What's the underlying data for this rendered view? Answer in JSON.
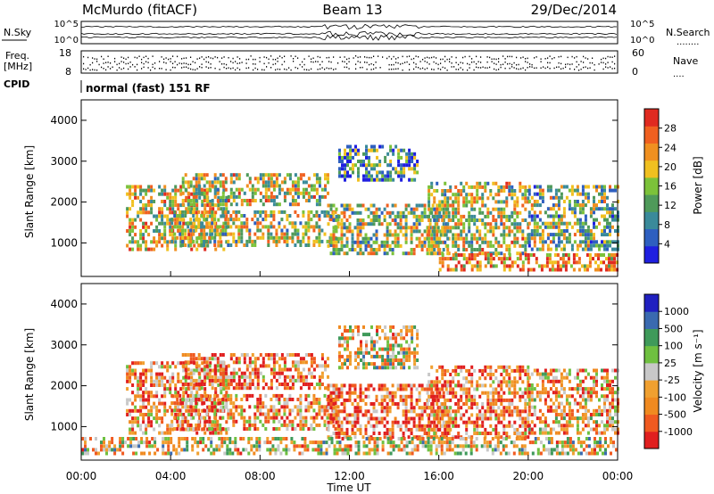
{
  "header": {
    "title": "McMurdo (fitACF)",
    "beam": "Beam 13",
    "date": "29/Dec/2014"
  },
  "params_panel": {
    "nsky_label": "N.Sky",
    "nsky_ticks": [
      "10^5",
      "10^0"
    ],
    "nsearch_label": "N.Search",
    "nsearch_ticks": [
      "10^5",
      "10^0"
    ],
    "freq_label_line1": "Freq.",
    "freq_label_line2": "[MHz]",
    "freq_ticks": [
      "18",
      "8"
    ],
    "nave_label": "Nave",
    "nave_ticks": [
      "60",
      "0"
    ],
    "cpid_label": "CPID",
    "cpid_text": "normal (fast) 151 RF",
    "nsearch_dots": "........",
    "nave_dots": "...."
  },
  "chart_data": [
    {
      "type": "heatmap",
      "name": "power",
      "ylabel": "Slant Range [km]",
      "yticks": [
        "4000",
        "3000",
        "2000",
        "1000"
      ],
      "ytick_values": [
        4000,
        3000,
        2000,
        1000
      ],
      "ylim": [
        180,
        4500
      ],
      "x_range_hours": [
        0,
        24
      ],
      "colorbar": {
        "label": "Power [dB]",
        "ticks": [
          "28",
          "24",
          "20",
          "16",
          "12",
          "8",
          "4"
        ],
        "colors_bottom_to_top": [
          "#1f1fe0",
          "#2e5fc0",
          "#3a8a9a",
          "#4f9a5a",
          "#7cc23a",
          "#f0c020",
          "#f09020",
          "#f06020",
          "#e02a20"
        ]
      },
      "echo_regions": [
        {
          "t": [
            2.0,
            6.5
          ],
          "r": [
            800,
            2400
          ],
          "level": 0.6
        },
        {
          "t": [
            4.5,
            11.0
          ],
          "r": [
            1900,
            2700
          ],
          "level": 0.55
        },
        {
          "t": [
            4.0,
            11.5
          ],
          "r": [
            900,
            1800
          ],
          "level": 0.5
        },
        {
          "t": [
            11.0,
            16.5
          ],
          "r": [
            700,
            1900
          ],
          "level": 0.5
        },
        {
          "t": [
            15.5,
            20.0
          ],
          "r": [
            700,
            2500
          ],
          "level": 0.55
        },
        {
          "t": [
            16.0,
            24.0
          ],
          "r": [
            300,
            700
          ],
          "level": 0.75
        },
        {
          "t": [
            11.5,
            15.0
          ],
          "r": [
            2500,
            3400
          ],
          "level": 0.3
        },
        {
          "t": [
            20.0,
            24.0
          ],
          "r": [
            800,
            2400
          ],
          "level": 0.45
        }
      ]
    },
    {
      "type": "heatmap",
      "name": "velocity",
      "ylabel": "Slant Range [km]",
      "yticks": [
        "4000",
        "3000",
        "2000",
        "1000"
      ],
      "ytick_values": [
        4000,
        3000,
        2000,
        1000
      ],
      "ylim": [
        180,
        4500
      ],
      "x_range_hours": [
        0,
        24
      ],
      "xlabel": "Time UT",
      "xticks": [
        "00:00",
        "04:00",
        "08:00",
        "12:00",
        "16:00",
        "20:00",
        "00:00"
      ],
      "xtick_values": [
        0,
        4,
        8,
        12,
        16,
        20,
        24
      ],
      "colorbar": {
        "label": "Velocity [m s⁻¹]",
        "ticks": [
          "1000",
          "500",
          "100",
          "25",
          "-25",
          "-100",
          "-500",
          "-1000"
        ],
        "colors_bottom_to_top": [
          "#e01f1f",
          "#f05a20",
          "#f08a20",
          "#f0a030",
          "#c8c8c8",
          "#6fc040",
          "#3f9a5a",
          "#3a6ab0",
          "#2020c0"
        ]
      },
      "echo_regions": [
        {
          "t": [
            2.0,
            6.5
          ],
          "r": [
            800,
            2600
          ],
          "level": 0.3
        },
        {
          "t": [
            4.5,
            11.0
          ],
          "r": [
            1900,
            2800
          ],
          "level": 0.25
        },
        {
          "t": [
            4.0,
            11.5
          ],
          "r": [
            900,
            1800
          ],
          "level": 0.3
        },
        {
          "t": [
            11.0,
            16.5
          ],
          "r": [
            700,
            2000
          ],
          "level": 0.2
        },
        {
          "t": [
            15.5,
            20.0
          ],
          "r": [
            700,
            2500
          ],
          "level": 0.25
        },
        {
          "t": [
            0.0,
            24.0
          ],
          "r": [
            300,
            700
          ],
          "level": 0.45
        },
        {
          "t": [
            11.5,
            15.0
          ],
          "r": [
            2400,
            3400
          ],
          "level": 0.45
        },
        {
          "t": [
            20.0,
            24.0
          ],
          "r": [
            800,
            2400
          ],
          "level": 0.35
        }
      ]
    }
  ]
}
